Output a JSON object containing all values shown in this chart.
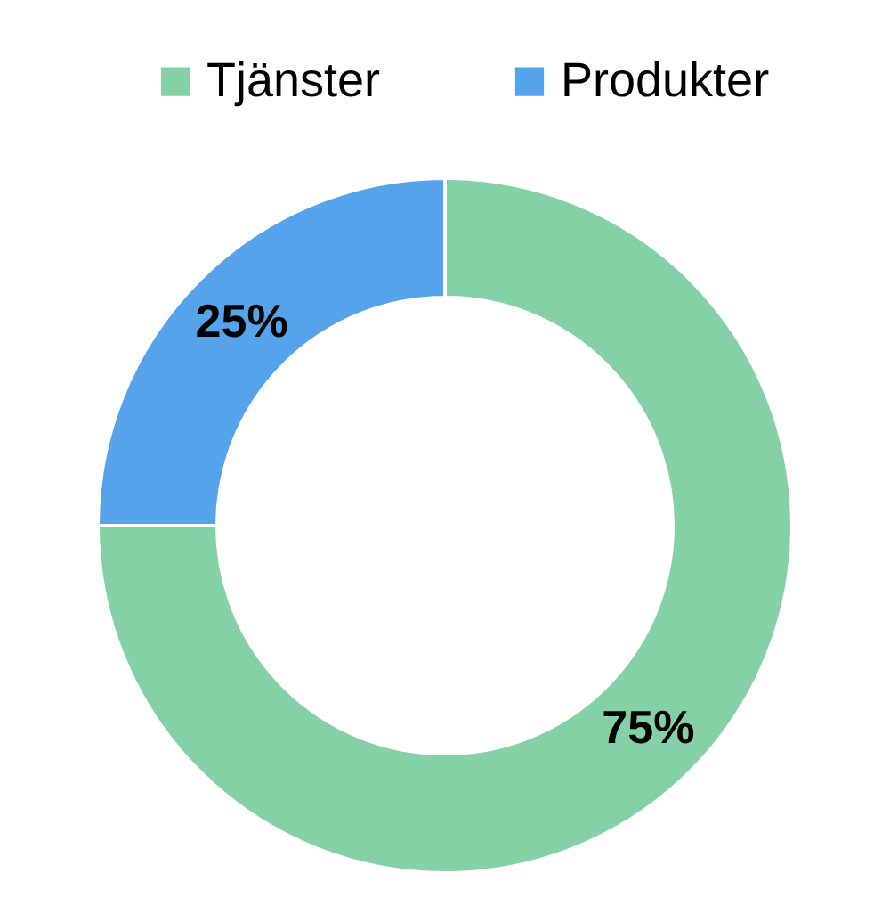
{
  "chart_data": {
    "type": "donut",
    "categories": [
      "Tjänster",
      "Produkter"
    ],
    "values": [
      75,
      25
    ],
    "colors": [
      "#84d1a5",
      "#55a3ea"
    ],
    "value_labels": [
      "75%",
      "25%"
    ],
    "legend": "top"
  }
}
